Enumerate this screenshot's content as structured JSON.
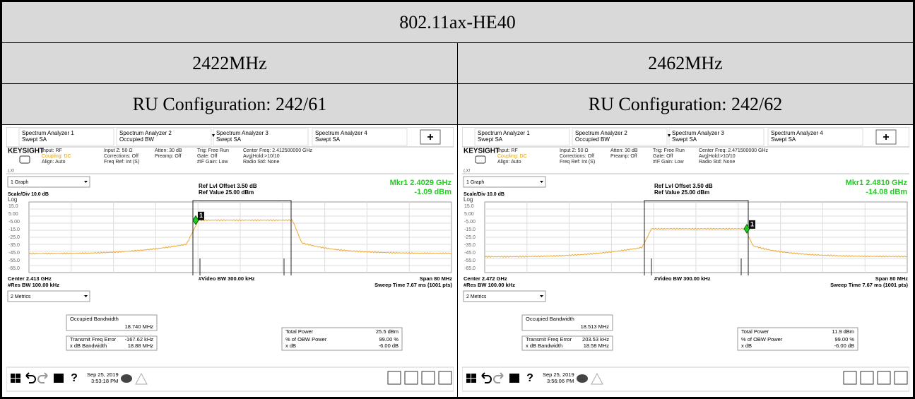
{
  "header": {
    "title": "802.11ax-HE40"
  },
  "columns": [
    {
      "frequency": "2422MHz",
      "ru_configuration": "RU Configuration: 242/61",
      "screen": {
        "tabs": [
          {
            "name": "Spectrum Analyzer 1",
            "mode": "Swept SA"
          },
          {
            "name": "Spectrum Analyzer 2",
            "mode": "Occupied BW"
          },
          {
            "name": "Spectrum Analyzer 3",
            "mode": "Swept SA"
          },
          {
            "name": "Spectrum Analyzer 4",
            "mode": "Swept SA"
          }
        ],
        "add_button": "+",
        "brand": "KEYSIGHT",
        "lxi": "LXI",
        "settings": [
          [
            "Input: RF",
            "Coupling: DC",
            "Align: Auto"
          ],
          [
            "Input Z: 50 Ω",
            "Corrections: Off",
            "Freq Ref: Int (S)"
          ],
          [
            "Atten: 30 dB",
            "Preamp: Off"
          ],
          [
            "Trig: Free Run",
            "Gate: Off",
            "#IF Gain: Low"
          ],
          [
            "Center Freq: 2.412500000 GHz",
            "Avg|Hold:>10/10",
            "Radio Std: None"
          ]
        ],
        "graph_select": "1 Graph",
        "scale": "Scale/Div 10.0 dB",
        "log": "Log",
        "ref_offset": "Ref Lvl Offset 3.50 dB",
        "ref_value": "Ref Value 25.00 dBm",
        "marker_freq": "Mkr1  2.4029 GHz",
        "marker_level": "-1.09 dBm",
        "marker_id": "1",
        "y_labels": [
          "15.0",
          "5.00",
          "-5.00",
          "-15.0",
          "-25.0",
          "-35.0",
          "-45.0",
          "-55.0",
          "-65.0"
        ],
        "center": "Center 2.413 GHz",
        "res_bw": "#Res BW 100.00 kHz",
        "video_bw": "#Video BW 300.00 kHz",
        "span": "Span 80 MHz",
        "sweep": "Sweep Time 7.67 ms (1001 pts)",
        "metrics_select": "2 Metrics",
        "metrics": [
          {
            "label": "Occupied Bandwidth",
            "value": "18.740 MHz"
          },
          {
            "label": "Transmit Freq Error",
            "value": "-167.62 kHz"
          },
          {
            "label": "x dB Bandwidth",
            "value": "18.88 MHz"
          },
          {
            "label": "Total Power",
            "value": "25.5 dBm"
          },
          {
            "label": "% of OBW Power",
            "value": "99.00 %"
          },
          {
            "label": "x dB",
            "value": "-6.00 dB"
          }
        ],
        "help": "?",
        "date": "Sep 25, 2019",
        "time": "3:53:18 PM"
      }
    },
    {
      "frequency": "2462MHz",
      "ru_configuration": "RU Configuration: 242/62",
      "screen": {
        "tabs": [
          {
            "name": "Spectrum Analyzer 1",
            "mode": "Swept SA"
          },
          {
            "name": "Spectrum Analyzer 2",
            "mode": "Occupied BW"
          },
          {
            "name": "Spectrum Analyzer 3",
            "mode": "Swept SA"
          },
          {
            "name": "Spectrum Analyzer 4",
            "mode": "Swept SA"
          }
        ],
        "add_button": "+",
        "brand": "KEYSIGHT",
        "lxi": "LXI",
        "settings": [
          [
            "Input: RF",
            "Coupling: DC",
            "Align: Auto"
          ],
          [
            "Input Z: 50 Ω",
            "Corrections: Off",
            "Freq Ref: Int (S)"
          ],
          [
            "Atten: 30 dB",
            "Preamp: Off"
          ],
          [
            "Trig: Free Run",
            "Gate: Off",
            "#IF Gain: Low"
          ],
          [
            "Center Freq: 2.471500000 GHz",
            "Avg|Hold:>10/10",
            "Radio Std: None"
          ]
        ],
        "graph_select": "1 Graph",
        "scale": "Scale/Div 10.0 dB",
        "log": "Log",
        "ref_offset": "Ref Lvl Offset 3.50 dB",
        "ref_value": "Ref Value 25.00 dBm",
        "marker_freq": "Mkr1  2.4810 GHz",
        "marker_level": "-14.08 dBm",
        "marker_id": "1",
        "y_labels": [
          "15.0",
          "5.00",
          "-5.00",
          "-15.0",
          "-25.0",
          "-35.0",
          "-45.0",
          "-55.0",
          "-65.0"
        ],
        "center": "Center 2.472 GHz",
        "res_bw": "#Res BW 100.00 kHz",
        "video_bw": "#Video BW 300.00 kHz",
        "span": "Span 80 MHz",
        "sweep": "Sweep Time 7.67 ms (1001 pts)",
        "metrics_select": "2 Metrics",
        "metrics": [
          {
            "label": "Occupied Bandwidth",
            "value": "18.513 MHz"
          },
          {
            "label": "Transmit Freq Error",
            "value": "203.53 kHz"
          },
          {
            "label": "x dB Bandwidth",
            "value": "18.58 MHz"
          },
          {
            "label": "Total Power",
            "value": "11.9 dBm"
          },
          {
            "label": "% of OBW Power",
            "value": "99.00 %"
          },
          {
            "label": "x dB",
            "value": "-6.00 dB"
          }
        ],
        "help": "?",
        "date": "Sep 25, 2019",
        "time": "3:56:06 PM"
      }
    }
  ]
}
